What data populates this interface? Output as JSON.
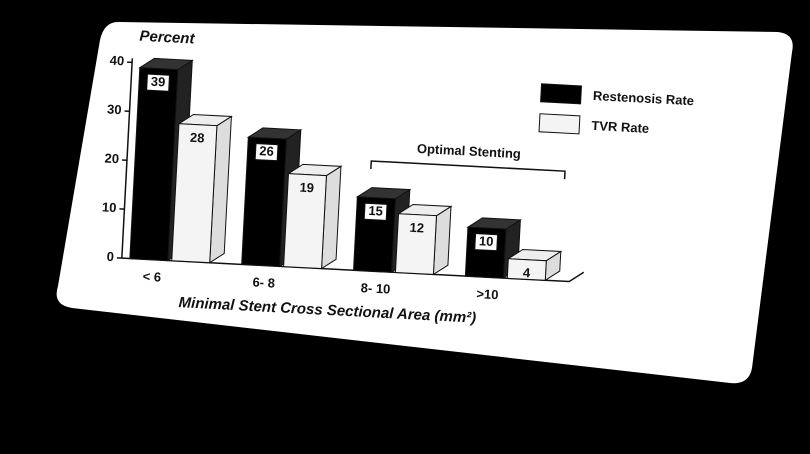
{
  "chart_data": {
    "type": "bar",
    "title": "Percent",
    "x_label": "Minimal Stent Cross Sectional Area (mm²)",
    "annotation": "Optimal Stenting",
    "categories": [
      "< 6",
      "6- 8",
      "8- 10",
      ">10"
    ],
    "series": [
      {
        "name": "Restenosis Rate",
        "color": "#000000",
        "values": [
          39,
          26,
          15,
          10
        ]
      },
      {
        "name": "TVR Rate",
        "color": "#f4f4f4",
        "values": [
          28,
          19,
          12,
          4
        ]
      }
    ],
    "ylim": [
      0,
      40
    ],
    "yticks": [
      0,
      10,
      20,
      30,
      40
    ],
    "legend": "top-right"
  }
}
